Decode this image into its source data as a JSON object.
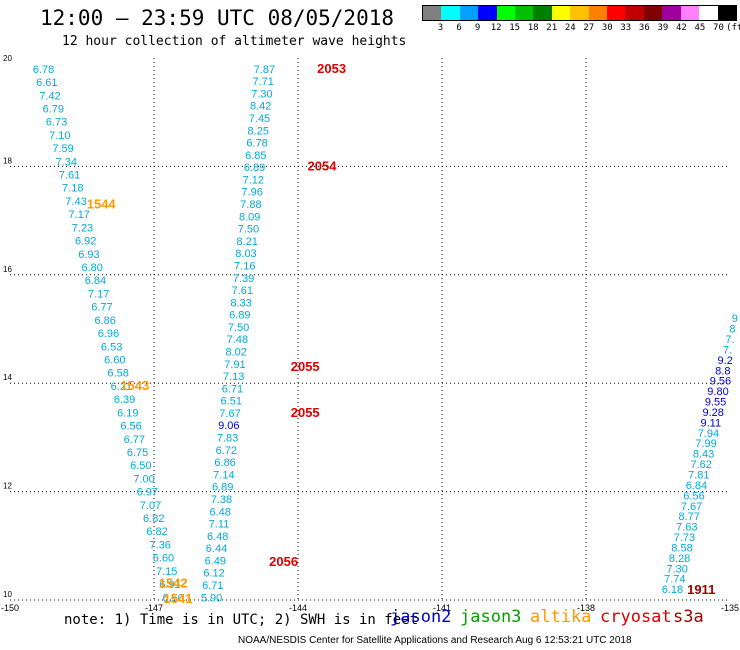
{
  "header": {
    "title": "12:00 – 23:59 UTC 08/05/2018",
    "subtitle": "12 hour collection of altimeter wave heights"
  },
  "color_scale": {
    "labels": [
      "3",
      "6",
      "9",
      "12",
      "15",
      "18",
      "21",
      "24",
      "27",
      "30",
      "33",
      "36",
      "39",
      "42",
      "45",
      "70",
      "(ft)"
    ],
    "colors": [
      "#808080",
      "#00ffff",
      "#00a0ff",
      "#0000ff",
      "#00ff00",
      "#00c000",
      "#008000",
      "#ffff00",
      "#ffc000",
      "#ff8000",
      "#ff0000",
      "#c00000",
      "#800000",
      "#a000a0",
      "#ff80ff",
      "#ffffff",
      "#000000"
    ]
  },
  "footer": {
    "note": "note: 1) Time is in UTC; 2) SWH is in feet",
    "satellites": [
      {
        "name": "jason2",
        "color": "#0000cc"
      },
      {
        "name": "jason3",
        "color": "#00a000"
      },
      {
        "name": "altika",
        "color": "#ff9900"
      },
      {
        "name": "cryosat",
        "color": "#dd0000"
      },
      {
        "name": "s3a",
        "color": "#990000"
      }
    ],
    "credit": "NOAA/NESDIS Center for Satellite Applications and Research    Aug  6 12:53:21 UTC 2018"
  },
  "chart_data": {
    "type": "scatter",
    "xlim": [
      -150,
      -135
    ],
    "ylim": [
      10,
      20
    ],
    "x_ticks": [
      "-150",
      "-147",
      "-144",
      "-141",
      "-138",
      "-135"
    ],
    "y_ticks": [
      "10",
      "12",
      "14",
      "16",
      "18",
      "20"
    ],
    "grid": "dotted",
    "series_colors": {
      "cyan": "#00aadd",
      "blue": "#0000cc",
      "orange": "#ff9900",
      "red": "#dd0000",
      "darkred": "#990000"
    },
    "tracks": [
      {
        "color": "cyan",
        "x_start": -149.3,
        "x_end": -146.6,
        "y_start": 19.8,
        "y_end": 10.05,
        "values": [
          "6.78",
          "6.61",
          "7.42",
          "6.79",
          "6.73",
          "7.10",
          "7.59",
          "7.34",
          "7.61",
          "7.18",
          "7.43",
          "7.17",
          "7.23",
          "6.92",
          "6.93",
          "6.80",
          "6.84",
          "7.17",
          "6.77",
          "6.86",
          "6.96",
          "6.53",
          "6.60",
          "6.58",
          "6.21",
          "6.39",
          "6.19",
          "6.56",
          "6.77",
          "6.75",
          "6.50",
          "7.00",
          "6.97",
          "7.07",
          "6.82",
          "6.82",
          "7.36",
          "6.60",
          "7.15",
          "6.91",
          "6.50"
        ]
      },
      {
        "color": "cyan",
        "x_start": -144.7,
        "x_end": -145.8,
        "y_start": 19.8,
        "y_end": 10.05,
        "values": [
          "7.87",
          "7.71",
          "7.30",
          "8.42",
          "7.45",
          "8.25",
          "6.78",
          "6.85",
          "6.89",
          "7.12",
          "7.96",
          "7.88",
          "8.09",
          "7.50",
          "8.21",
          "8.03",
          "7.16",
          "7.39",
          "7.61",
          "8.33",
          "6.89",
          "7.50",
          "7.48",
          "8.02",
          "7.91",
          "7.13",
          "6.71",
          "6.51",
          "7.67",
          "9.06",
          "7.83",
          "6.72",
          "6.86",
          "7.14",
          "6.89",
          "7.38",
          "6.48",
          "7.11",
          "6.48",
          "6.44",
          "6.49",
          "6.12",
          "6.71",
          "5.90"
        ],
        "blue_indices": [
          29
        ]
      },
      {
        "color": "cyan",
        "x_start": -136.2,
        "x_end": -134.9,
        "y_start": 10.2,
        "y_end": 15.2,
        "values": [
          "6.18",
          "7.74",
          "7.30",
          "8.28",
          "8.58",
          "7.73",
          "7.63",
          "8.77",
          "7.67",
          "6.56",
          "6.84",
          "7.81",
          "7.62",
          "8.43",
          "7.99",
          "7.94",
          "9.11",
          "9.28",
          "9.55",
          "9.80",
          "9.56",
          "8.8",
          "9.2",
          "7.",
          "7.",
          "8",
          "9"
        ],
        "blue_indices": [
          16,
          17,
          18,
          19,
          20,
          21,
          22
        ]
      }
    ],
    "labels": [
      {
        "text": "2053",
        "x": -143.3,
        "y": 19.8,
        "color": "red"
      },
      {
        "text": "2054",
        "x": -143.5,
        "y": 18.0,
        "color": "red"
      },
      {
        "text": "2055",
        "x": -143.85,
        "y": 14.3,
        "color": "red"
      },
      {
        "text": "2055",
        "x": -143.85,
        "y": 13.45,
        "color": "red"
      },
      {
        "text": "2056",
        "x": -144.3,
        "y": 10.7,
        "color": "red"
      },
      {
        "text": "1544",
        "x": -148.1,
        "y": 17.3,
        "color": "orange"
      },
      {
        "text": "1543",
        "x": -147.4,
        "y": 13.95,
        "color": "orange"
      },
      {
        "text": "1542",
        "x": -146.6,
        "y": 10.3,
        "color": "orange"
      },
      {
        "text": "1541",
        "x": -146.5,
        "y": 10.02,
        "color": "orange"
      },
      {
        "text": "1911",
        "x": -135.6,
        "y": 10.18,
        "color": "darkred"
      }
    ]
  }
}
